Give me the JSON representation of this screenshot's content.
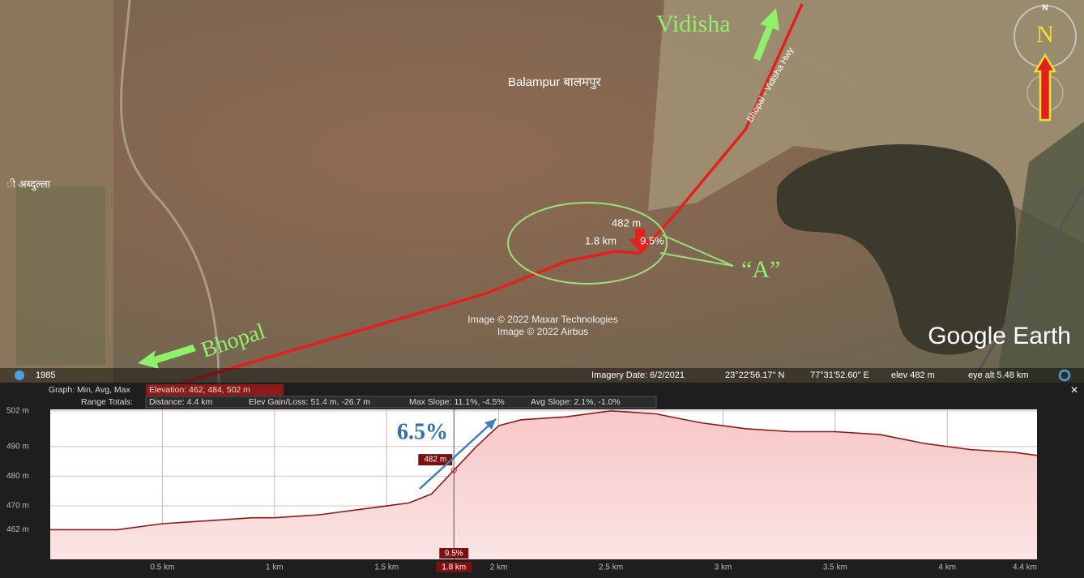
{
  "map": {
    "vidisha": "Vidisha",
    "balampur": "Balampur बालमपुर",
    "left_village": "ी अब्दुल्ला",
    "road_name": "Bhopal - Vidisha Hwy",
    "bhopal": "Bhopal",
    "callout": "“A”",
    "point_elev": "482 m",
    "point_dist": "1.8 km",
    "point_slope": "9.5%",
    "credit_1": "Image © 2022 Maxar Technologies",
    "credit_2": "Image © 2022 Airbus",
    "brand": "Google Earth",
    "compass_small": "N",
    "compass_big": "N"
  },
  "status_bar": {
    "year": "1985",
    "imagery_date": "Imagery Date: 6/2/2021",
    "lat": "23°22'56.17\" N",
    "lon": "77°31'52.60\" E",
    "elev": "elev  482 m",
    "eye_alt": "eye alt  5.48 km"
  },
  "info_bar": {
    "graph_label": "Graph: Min, Avg, Max",
    "elevation": "Elevation: 462, 484, 502 m",
    "range_totals": "Range Totals:",
    "distance": "Distance: 4.4 km",
    "elev_gain_loss": "Elev Gain/Loss: 51.4 m, -26.7 m",
    "max_slope": "Max Slope: 11.1%, -4.5%",
    "avg_slope": "Avg Slope: 2.1%, -1.0%",
    "close": "×"
  },
  "profile": {
    "type": "line",
    "color": "#8b1a1a",
    "x": [
      0,
      0.15,
      0.3,
      0.5,
      0.7,
      0.9,
      1.0,
      1.2,
      1.4,
      1.5,
      1.6,
      1.7,
      1.8,
      1.9,
      2.0,
      2.1,
      2.3,
      2.5,
      2.7,
      2.9,
      3.1,
      3.3,
      3.5,
      3.7,
      3.9,
      4.1,
      4.3,
      4.4
    ],
    "values": [
      462,
      462,
      462,
      464,
      465,
      466,
      466,
      467,
      469,
      470,
      471,
      474,
      482,
      490,
      497,
      499,
      500,
      502,
      501,
      498,
      496,
      495,
      495,
      494,
      491,
      489,
      488,
      487
    ],
    "xlim": [
      0,
      4.4
    ],
    "ylim": [
      452,
      502.5
    ],
    "xticks": [
      {
        "value": 0.5,
        "label": "0.5 km"
      },
      {
        "value": 1,
        "label": "1 km"
      },
      {
        "value": 1.5,
        "label": "1.5 km"
      },
      {
        "value": 2,
        "label": "2 km"
      },
      {
        "value": 2.5,
        "label": "2.5 km"
      },
      {
        "value": 3,
        "label": "3 km"
      },
      {
        "value": 3.5,
        "label": "3.5 km"
      },
      {
        "value": 4,
        "label": "4 km"
      },
      {
        "value": 4.4,
        "label": "4.4 km"
      }
    ],
    "yticks": [
      {
        "value": 462,
        "label": "462 m"
      },
      {
        "value": 470,
        "label": "470 m"
      },
      {
        "value": 480,
        "label": "480 m"
      },
      {
        "value": 490,
        "label": "490 m"
      },
      {
        "value": 502,
        "label": "502 m"
      }
    ],
    "marker": {
      "x": 1.8,
      "value": 482,
      "value_label": "482 m",
      "slope_label": "9.5%",
      "x_label": "1.8 km"
    },
    "annotation": "6.5%"
  }
}
